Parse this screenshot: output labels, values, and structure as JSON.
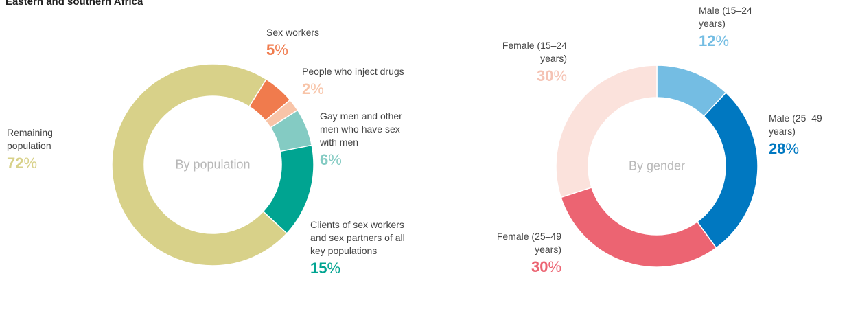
{
  "title": "Eastern and southern Africa",
  "charts": [
    {
      "chart_data": {
        "type": "donut",
        "center_label": "By population",
        "categories": [
          "Sex workers",
          "People who inject drugs",
          "Gay men and other men who have sex with men",
          "Clients of sex workers and sex partners of all key populations",
          "Remaining population"
        ],
        "values": [
          5,
          2,
          6,
          15,
          72
        ],
        "value_labels": [
          "5%",
          "2%",
          "6%",
          "15%",
          "72%"
        ],
        "colors": [
          "#f07b4d",
          "#f8c4a8",
          "#84cbc3",
          "#00a491",
          "#d8d189"
        ]
      }
    },
    {
      "chart_data": {
        "type": "donut",
        "center_label": "By gender",
        "categories": [
          "Male (15–24 years)",
          "Male (25–49 years)",
          "Female (25–49 years)",
          "Female (15–24 years)"
        ],
        "values": [
          12,
          28,
          30,
          30
        ],
        "value_labels": [
          "12%",
          "28%",
          "30%",
          "30%"
        ],
        "colors": [
          "#74bde3",
          "#0078c1",
          "#ec6472",
          "#fbe2dc"
        ]
      }
    }
  ]
}
